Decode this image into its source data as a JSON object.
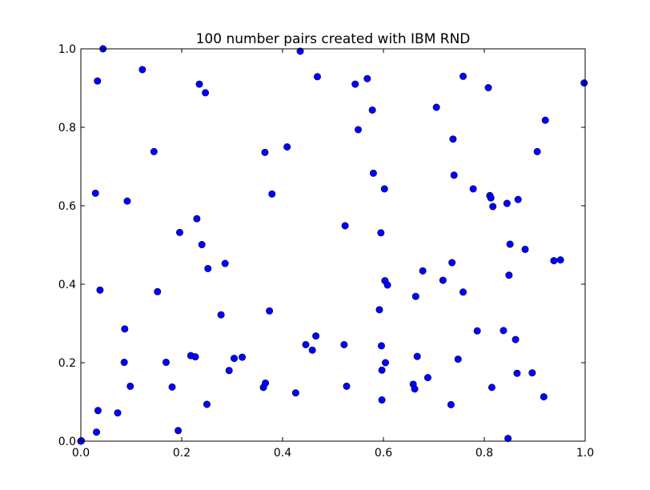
{
  "chart_data": {
    "type": "scatter",
    "title": "100 number pairs created with IBM RND",
    "xlabel": "",
    "ylabel": "",
    "xlim": [
      0,
      1
    ],
    "ylim": [
      0,
      1
    ],
    "x_ticks": [
      "0.0",
      "0.2",
      "0.4",
      "0.6",
      "0.8",
      "1.0"
    ],
    "y_ticks": [
      "0.0",
      "0.2",
      "0.4",
      "0.6",
      "0.8",
      "1.0"
    ],
    "grid": false,
    "marker_color": "#0000ff",
    "series": [
      {
        "points": [
          [
            0.0,
            0.0
          ],
          [
            0.029,
            0.632
          ],
          [
            0.033,
            0.918
          ],
          [
            0.044,
            1.0
          ],
          [
            0.038,
            0.385
          ],
          [
            0.034,
            0.078
          ],
          [
            0.031,
            0.023
          ],
          [
            0.073,
            0.072
          ],
          [
            0.087,
            0.286
          ],
          [
            0.092,
            0.612
          ],
          [
            0.086,
            0.201
          ],
          [
            0.098,
            0.14
          ],
          [
            0.122,
            0.947
          ],
          [
            0.145,
            0.738
          ],
          [
            0.152,
            0.381
          ],
          [
            0.169,
            0.201
          ],
          [
            0.181,
            0.138
          ],
          [
            0.193,
            0.027
          ],
          [
            0.196,
            0.532
          ],
          [
            0.218,
            0.218
          ],
          [
            0.227,
            0.215
          ],
          [
            0.23,
            0.567
          ],
          [
            0.235,
            0.91
          ],
          [
            0.24,
            0.501
          ],
          [
            0.247,
            0.888
          ],
          [
            0.25,
            0.094
          ],
          [
            0.252,
            0.44
          ],
          [
            0.278,
            0.322
          ],
          [
            0.286,
            0.453
          ],
          [
            0.294,
            0.18
          ],
          [
            0.304,
            0.211
          ],
          [
            0.32,
            0.214
          ],
          [
            0.362,
            0.137
          ],
          [
            0.365,
            0.736
          ],
          [
            0.366,
            0.148
          ],
          [
            0.374,
            0.332
          ],
          [
            0.379,
            0.63
          ],
          [
            0.409,
            0.75
          ],
          [
            0.426,
            0.123
          ],
          [
            0.435,
            0.994
          ],
          [
            0.446,
            0.246
          ],
          [
            0.459,
            0.232
          ],
          [
            0.466,
            0.268
          ],
          [
            0.469,
            0.929
          ],
          [
            0.522,
            0.246
          ],
          [
            0.524,
            0.549
          ],
          [
            0.527,
            0.14
          ],
          [
            0.544,
            0.91
          ],
          [
            0.55,
            0.794
          ],
          [
            0.568,
            0.924
          ],
          [
            0.578,
            0.844
          ],
          [
            0.58,
            0.683
          ],
          [
            0.592,
            0.335
          ],
          [
            0.595,
            0.531
          ],
          [
            0.596,
            0.243
          ],
          [
            0.597,
            0.181
          ],
          [
            0.597,
            0.105
          ],
          [
            0.602,
            0.643
          ],
          [
            0.603,
            0.409
          ],
          [
            0.604,
            0.2
          ],
          [
            0.608,
            0.398
          ],
          [
            0.659,
            0.145
          ],
          [
            0.662,
            0.133
          ],
          [
            0.664,
            0.369
          ],
          [
            0.667,
            0.216
          ],
          [
            0.678,
            0.434
          ],
          [
            0.688,
            0.162
          ],
          [
            0.705,
            0.851
          ],
          [
            0.718,
            0.41
          ],
          [
            0.734,
            0.093
          ],
          [
            0.736,
            0.455
          ],
          [
            0.738,
            0.77
          ],
          [
            0.74,
            0.678
          ],
          [
            0.748,
            0.209
          ],
          [
            0.758,
            0.93
          ],
          [
            0.758,
            0.38
          ],
          [
            0.778,
            0.643
          ],
          [
            0.786,
            0.281
          ],
          [
            0.808,
            0.901
          ],
          [
            0.811,
            0.626
          ],
          [
            0.813,
            0.62
          ],
          [
            0.815,
            0.137
          ],
          [
            0.817,
            0.598
          ],
          [
            0.838,
            0.282
          ],
          [
            0.845,
            0.606
          ],
          [
            0.847,
            0.007
          ],
          [
            0.849,
            0.423
          ],
          [
            0.851,
            0.502
          ],
          [
            0.862,
            0.259
          ],
          [
            0.865,
            0.173
          ],
          [
            0.867,
            0.616
          ],
          [
            0.881,
            0.489
          ],
          [
            0.895,
            0.174
          ],
          [
            0.905,
            0.738
          ],
          [
            0.918,
            0.113
          ],
          [
            0.921,
            0.818
          ],
          [
            0.938,
            0.46
          ],
          [
            0.951,
            0.462
          ],
          [
            0.998,
            0.913
          ],
          [
            0.001,
            0.001
          ]
        ]
      }
    ]
  }
}
